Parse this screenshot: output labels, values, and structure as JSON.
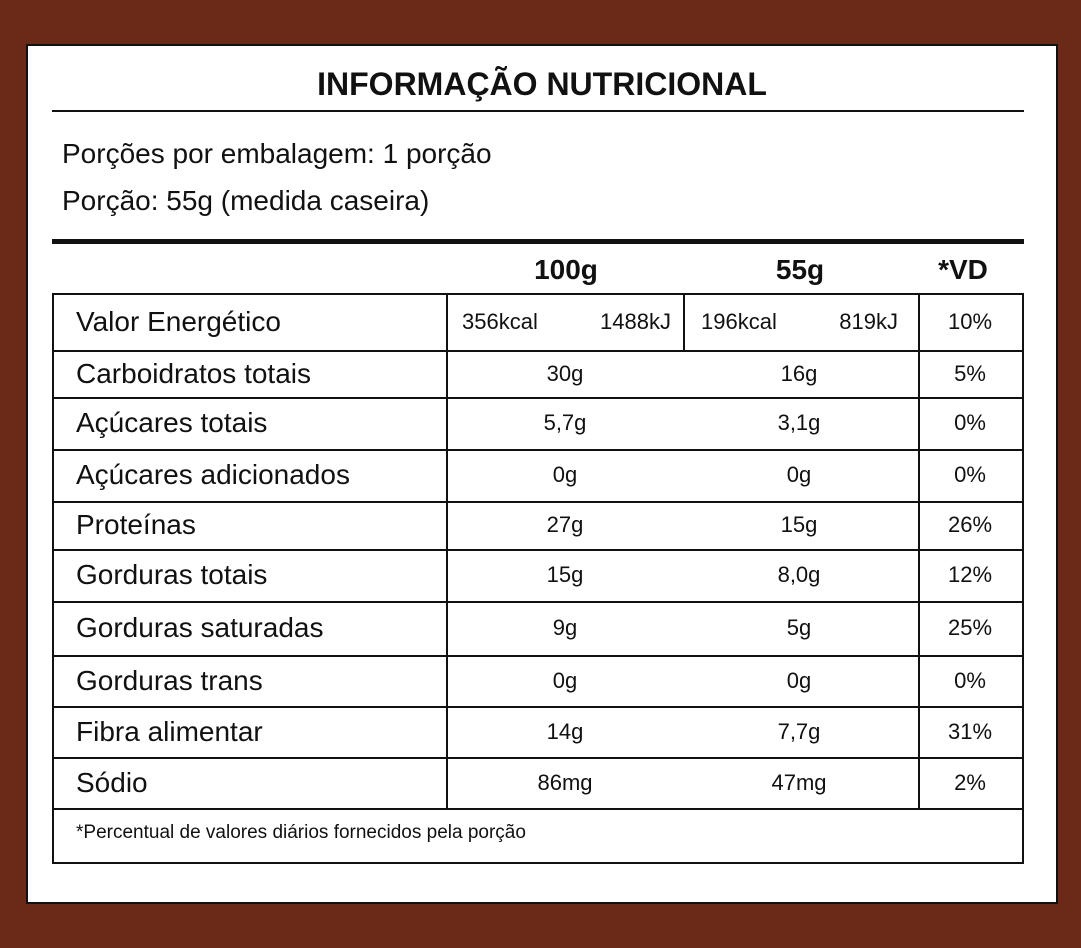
{
  "header": {
    "title": "INFORMAÇÃO NUTRICIONAL",
    "servings_per_package": "Porções por embalagem: 1 porção",
    "serving_size": "Porção: 55g (medida caseira)"
  },
  "table": {
    "columns": [
      "100g",
      "55g",
      "*VD"
    ],
    "energy": {
      "label": "Valor Energético",
      "per100": [
        "356kcal",
        "1488kJ"
      ],
      "per55": [
        "196kcal",
        "819kJ"
      ],
      "vd": "10%"
    },
    "rows": [
      [
        "Carboidratos totais",
        "30g",
        "16g",
        "5%"
      ],
      [
        "Açúcares totais",
        "5,7g",
        "3,1g",
        "0%"
      ],
      [
        "Açúcares adicionados",
        "0g",
        "0g",
        "0%"
      ],
      [
        "Proteínas",
        "27g",
        "15g",
        "26%"
      ],
      [
        "Gorduras totais",
        "15g",
        "8,0g",
        "12%"
      ],
      [
        "Gorduras saturadas",
        "9g",
        "5g",
        "25%"
      ],
      [
        "Gorduras trans",
        "0g",
        "0g",
        "0%"
      ],
      [
        "Fibra alimentar",
        "14g",
        "7,7g",
        "31%"
      ],
      [
        "Sódio",
        "86mg",
        "47mg",
        "2%"
      ]
    ],
    "footnote": "*Percentual de valores diários fornecidos pela porção"
  }
}
